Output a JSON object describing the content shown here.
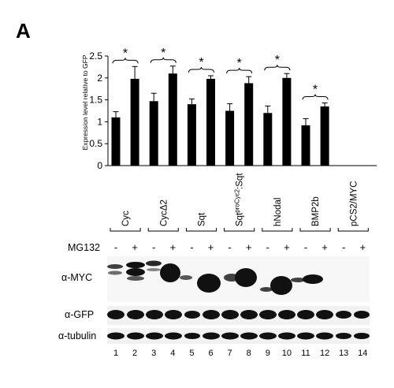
{
  "figure": {
    "panel_label": "A",
    "mg132_label": "MG132",
    "blot_rows": [
      {
        "label": "α-MYC"
      },
      {
        "label": "α-GFP"
      },
      {
        "label": "α-tubulin"
      }
    ],
    "constructs": [
      {
        "label": "Cyc"
      },
      {
        "label": "CycΔ2"
      },
      {
        "label": "Sqt"
      },
      {
        "label_base": "Sqt",
        "label_sup": "proCyc2",
        "label_tail": ":Sqt"
      },
      {
        "label": "hNodal"
      },
      {
        "label": "BMP2b"
      },
      {
        "label": "pCS2/MYC"
      }
    ],
    "treatment_signs": [
      "-",
      "+",
      "-",
      "+",
      "-",
      "+",
      "-",
      "+",
      "-",
      "+",
      "-",
      "+",
      "-",
      "+"
    ],
    "lane_numbers": [
      "1",
      "2",
      "3",
      "4",
      "5",
      "6",
      "7",
      "8",
      "9",
      "10",
      "11",
      "12",
      "13",
      "14"
    ],
    "significance_marker": "*"
  },
  "chart_data": {
    "type": "bar",
    "ylabel": "Expression level relative to GFP",
    "ylim": [
      0,
      2.5
    ],
    "yticks": [
      "0",
      "0.5",
      "1",
      "1.5",
      "2",
      "2.5"
    ],
    "categories": [
      "Cyc",
      "CycΔ2",
      "Sqt",
      "SqtproCyc2:Sqt",
      "hNodal",
      "BMP2b",
      "pCS2/MYC"
    ],
    "series": [
      {
        "values": [
          1.1,
          1.47,
          1.4,
          1.25,
          1.2,
          0.92,
          null
        ],
        "errors": [
          0.13,
          0.18,
          0.12,
          0.16,
          0.16,
          0.15,
          null
        ]
      },
      {
        "values": [
          1.98,
          2.1,
          1.98,
          1.88,
          2.0,
          1.35,
          null
        ],
        "errors": [
          0.28,
          0.17,
          0.07,
          0.15,
          0.1,
          0.08,
          null
        ]
      }
    ],
    "significant": [
      true,
      true,
      true,
      true,
      true,
      true,
      false
    ],
    "color": "#000000",
    "grid": false,
    "legend": "none"
  }
}
